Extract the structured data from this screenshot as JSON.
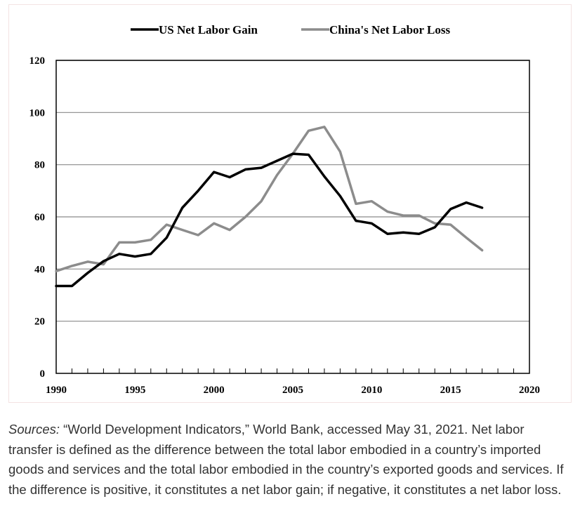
{
  "chart_data": {
    "type": "line",
    "title": "",
    "xlabel": "",
    "ylabel": "",
    "xlim": [
      1990,
      2020
    ],
    "ylim": [
      0,
      120
    ],
    "xticks": [
      1990,
      1995,
      2000,
      2005,
      2010,
      2015,
      2020
    ],
    "yticks": [
      0,
      20,
      40,
      60,
      80,
      100,
      120
    ],
    "x_minor_step": 1,
    "grid": "horizontal",
    "legend_position": "top",
    "series": [
      {
        "name": "US Net Labor Gain",
        "color": "#000000",
        "x": [
          1990,
          1991,
          1992,
          1993,
          1994,
          1995,
          1996,
          1997,
          1998,
          1999,
          2000,
          2001,
          2002,
          2003,
          2004,
          2005,
          2006,
          2007,
          2008,
          2009,
          2010,
          2011,
          2012,
          2013,
          2014,
          2015,
          2016,
          2017
        ],
        "y": [
          33.5,
          33.5,
          38.5,
          43,
          45.8,
          44.8,
          45.8,
          52,
          63.5,
          70,
          77.2,
          75.2,
          78.2,
          78.8,
          81.5,
          84.2,
          83.8,
          75.5,
          68,
          58.5,
          57.5,
          53.5,
          54,
          53.5,
          56,
          63,
          65.5,
          63.5
        ]
      },
      {
        "name": "China's Net Labor Loss",
        "color": "#8c8c8c",
        "x": [
          1990,
          1991,
          1992,
          1993,
          1994,
          1995,
          1996,
          1997,
          1998,
          1999,
          2000,
          2001,
          2002,
          2003,
          2004,
          2005,
          2006,
          2007,
          2008,
          2009,
          2010,
          2011,
          2012,
          2013,
          2014,
          2015,
          2016,
          2017
        ],
        "y": [
          39.2,
          41.2,
          42.8,
          41.8,
          50.2,
          50.2,
          51.2,
          57,
          55,
          53,
          57.5,
          55,
          60,
          66,
          76,
          84.2,
          93,
          94.5,
          85,
          65,
          66,
          62,
          60.5,
          60.5,
          57.5,
          57,
          52,
          47.2
        ]
      }
    ]
  },
  "source_note": {
    "label": "Sources:",
    "text": " “World Development Indicators,” World Bank, accessed May 31, 2021. Net labor transfer is defined as the difference between the total labor embodied in a country’s imported goods and services and the total labor embodied in the country’s exported goods and services. If the difference is positive, it constitutes a net labor gain; if negative, it constitutes a net labor loss."
  }
}
